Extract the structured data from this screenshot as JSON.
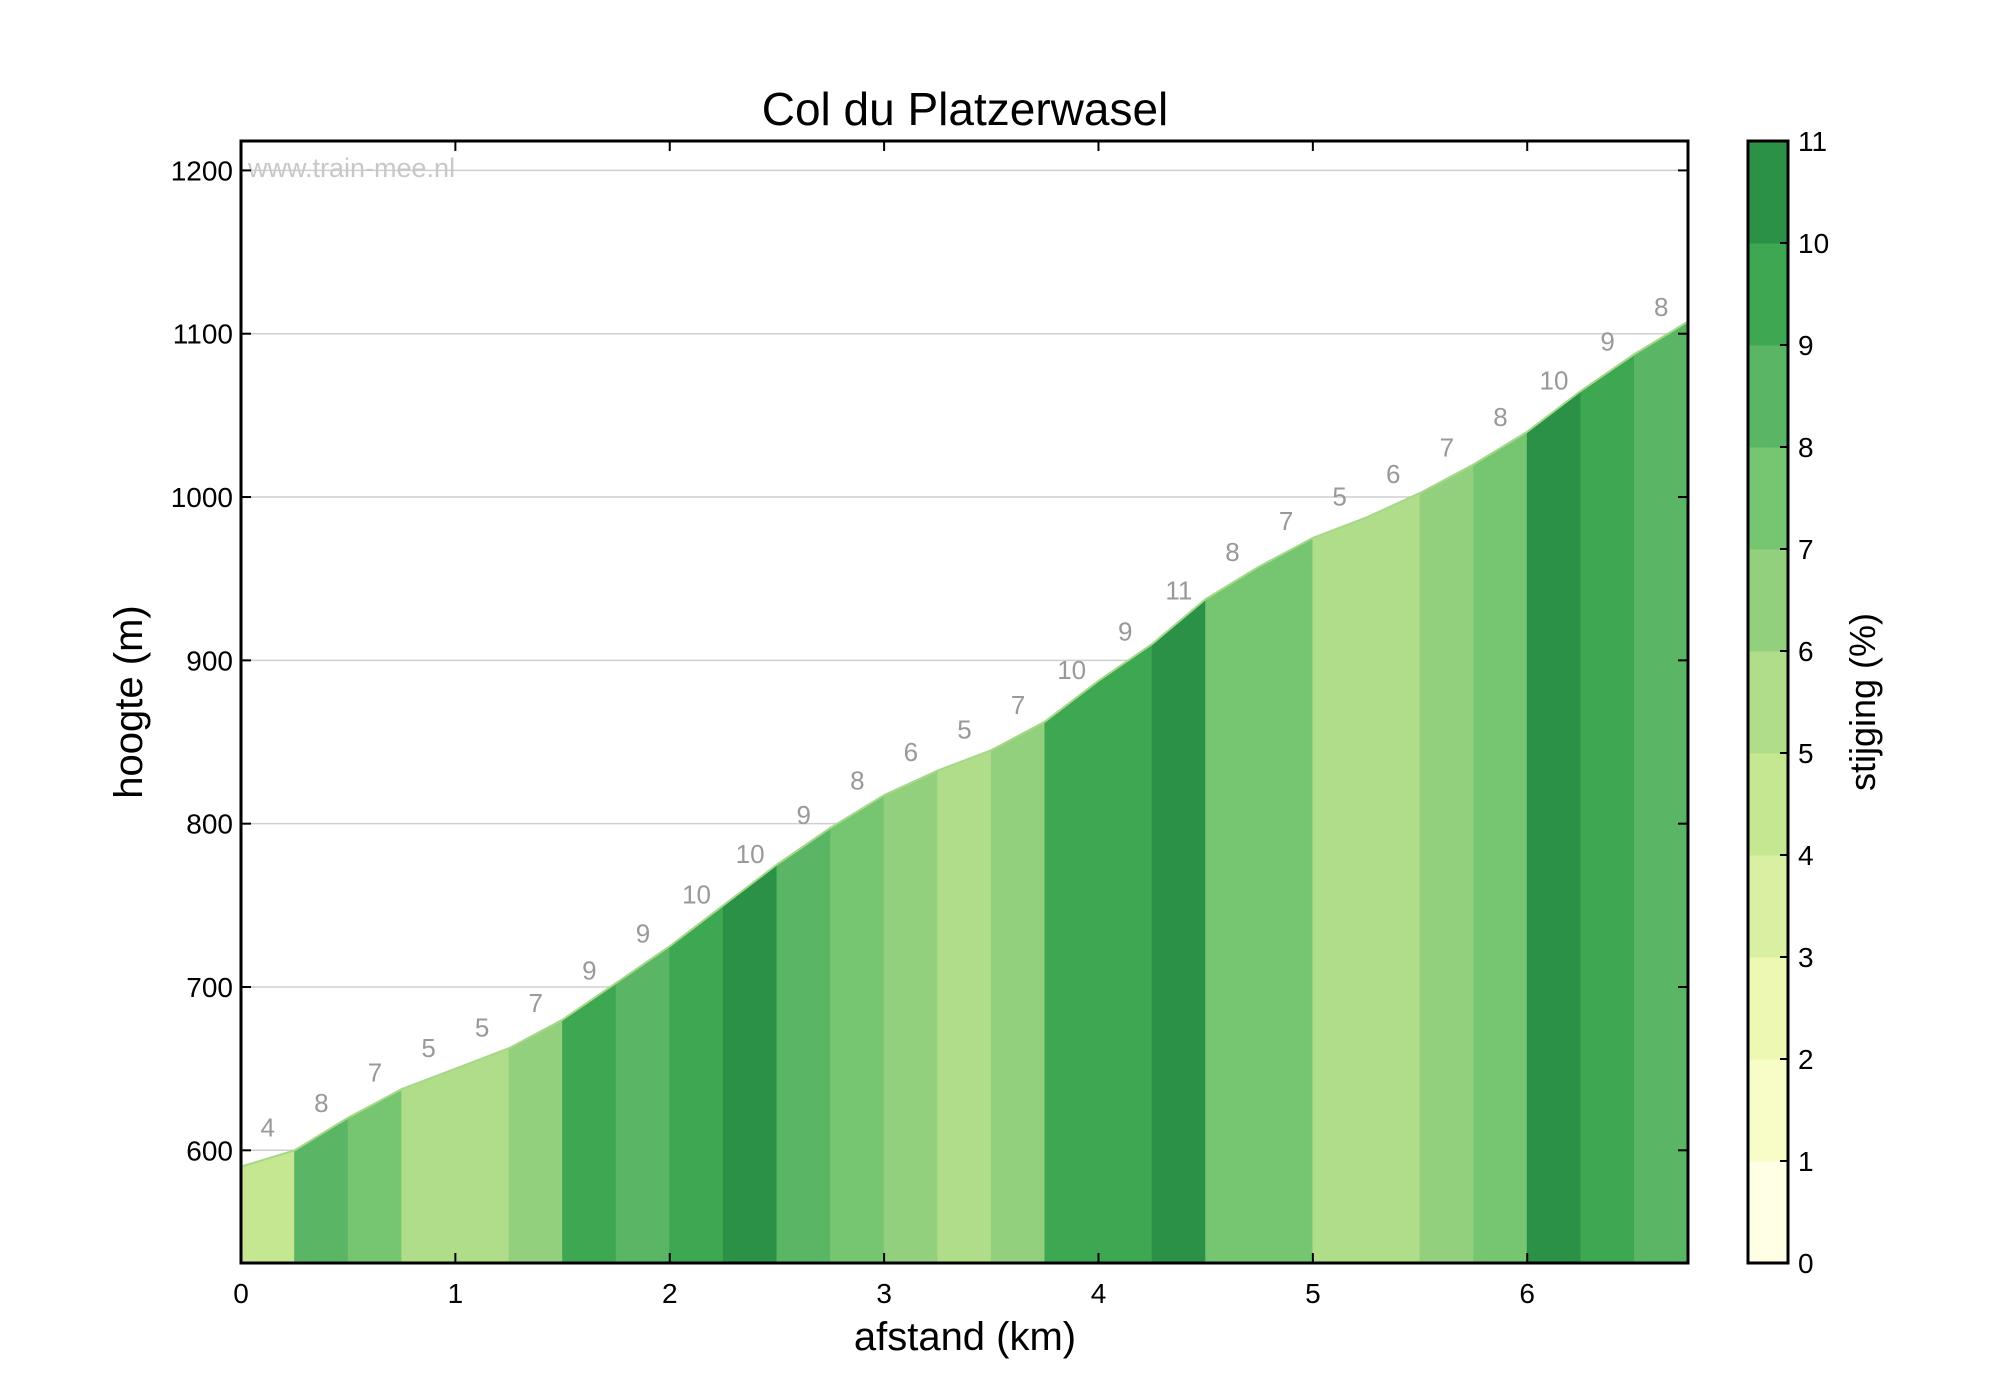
{
  "chart_data": {
    "type": "area",
    "title": "Col du Platzerwasel",
    "xlabel": "afstand (km)",
    "ylabel": "hoogte (m)",
    "watermark": "www.train-mee.nl",
    "xlim": [
      0,
      6.75
    ],
    "ylim": [
      531,
      1218
    ],
    "xticks": [
      "0",
      "1",
      "2",
      "3",
      "4",
      "5",
      "6"
    ],
    "yticks": [
      "600",
      "700",
      "800",
      "900",
      "1000",
      "1100",
      "1200"
    ],
    "grid": "horizontal",
    "distance_km": [
      0,
      0.25,
      0.5,
      0.75,
      1.0,
      1.25,
      1.5,
      1.75,
      2.0,
      2.25,
      2.5,
      2.75,
      3.0,
      3.25,
      3.5,
      3.75,
      4.0,
      4.25,
      4.5,
      4.75,
      5.0,
      5.25,
      5.5,
      5.75,
      6.0,
      6.25,
      6.5,
      6.75
    ],
    "elevation_m": [
      590,
      600,
      620,
      637.5,
      650,
      662.5,
      680,
      702.5,
      725,
      750,
      775,
      797.5,
      817.5,
      832.5,
      845,
      862.5,
      887.5,
      910,
      937.5,
      957.5,
      975,
      987.5,
      1002.5,
      1020,
      1040,
      1065,
      1087.5,
      1107.5
    ],
    "segment_gradient_labels": [
      "4",
      "8",
      "7",
      "5",
      "5",
      "7",
      "9",
      "9",
      "10",
      "10",
      "9",
      "8",
      "6",
      "5",
      "7",
      "10",
      "9",
      "11",
      "8",
      "7",
      "5",
      "6",
      "7",
      "8",
      "10",
      "9",
      "8"
    ],
    "segment_color_bin": [
      4,
      8,
      7,
      5,
      5,
      6,
      9,
      8,
      9,
      10,
      8,
      7,
      6,
      5,
      6,
      9,
      9,
      10,
      7,
      7,
      5,
      5,
      6,
      7,
      10,
      9,
      8
    ],
    "colorbar": {
      "label": "stijging (%)",
      "ticks": [
        "0",
        "1",
        "2",
        "3",
        "4",
        "5",
        "6",
        "7",
        "8",
        "9",
        "10",
        "11"
      ],
      "colors": [
        "#ffffe5",
        "#f8fcc6",
        "#edf8b3",
        "#d9f0a3",
        "#c5e791",
        "#b0dd89",
        "#93d07d",
        "#76c571",
        "#5ab664",
        "#3ea752",
        "#2b9147"
      ]
    }
  }
}
